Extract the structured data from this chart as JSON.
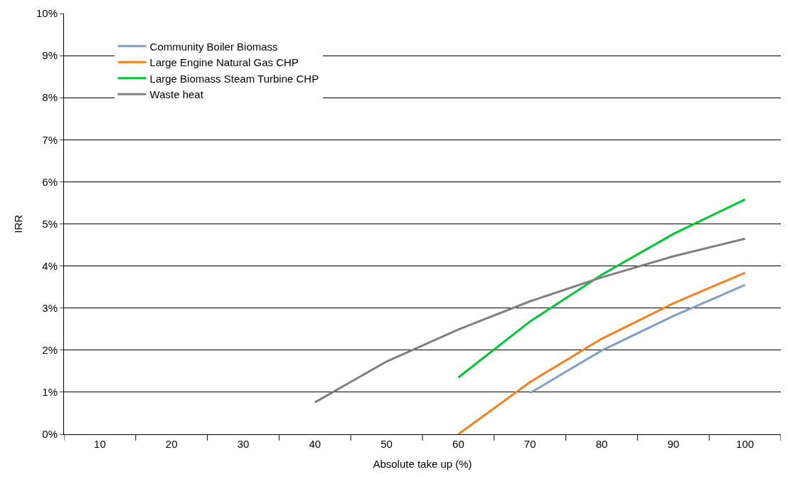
{
  "chart_data": {
    "type": "line",
    "xlabel": "Absolute take up (%)",
    "ylabel": "IRR",
    "categories": [
      "10",
      "20",
      "30",
      "40",
      "50",
      "60",
      "70",
      "80",
      "90",
      "100"
    ],
    "series": [
      {
        "name": "Community Boiler Biomass",
        "color": "#7f9fcb",
        "values": [
          null,
          null,
          null,
          null,
          null,
          null,
          0.98,
          1.99,
          2.81,
          3.55
        ]
      },
      {
        "name": "Large Engine Natural Gas CHP",
        "color": "#f5821f",
        "values": [
          null,
          null,
          null,
          null,
          null,
          0,
          1.24,
          2.27,
          3.11,
          3.84
        ]
      },
      {
        "name": "Large Biomass Steam Turbine CHP",
        "color": "#00c832",
        "values": [
          null,
          null,
          null,
          null,
          null,
          1.35,
          2.68,
          3.79,
          4.76,
          5.58
        ]
      },
      {
        "name": "Waste heat",
        "color": "#808080",
        "values": [
          null,
          null,
          null,
          0.76,
          1.73,
          2.49,
          3.16,
          3.73,
          4.23,
          4.65
        ]
      }
    ],
    "ylim": [
      0,
      10
    ],
    "yticks": [
      {
        "value": 0,
        "label": "0%"
      },
      {
        "value": 1,
        "label": "1%"
      },
      {
        "value": 2,
        "label": "2%"
      },
      {
        "value": 3,
        "label": "3%"
      },
      {
        "value": 4,
        "label": "4%"
      },
      {
        "value": 5,
        "label": "5%"
      },
      {
        "value": 6,
        "label": "6%"
      },
      {
        "value": 7,
        "label": "7%"
      },
      {
        "value": 8,
        "label": "8%"
      },
      {
        "value": 9,
        "label": "9%"
      },
      {
        "value": 10,
        "label": "10%"
      }
    ],
    "grid": "y",
    "legend": "top left",
    "marker": "none",
    "line_style": "solid"
  }
}
